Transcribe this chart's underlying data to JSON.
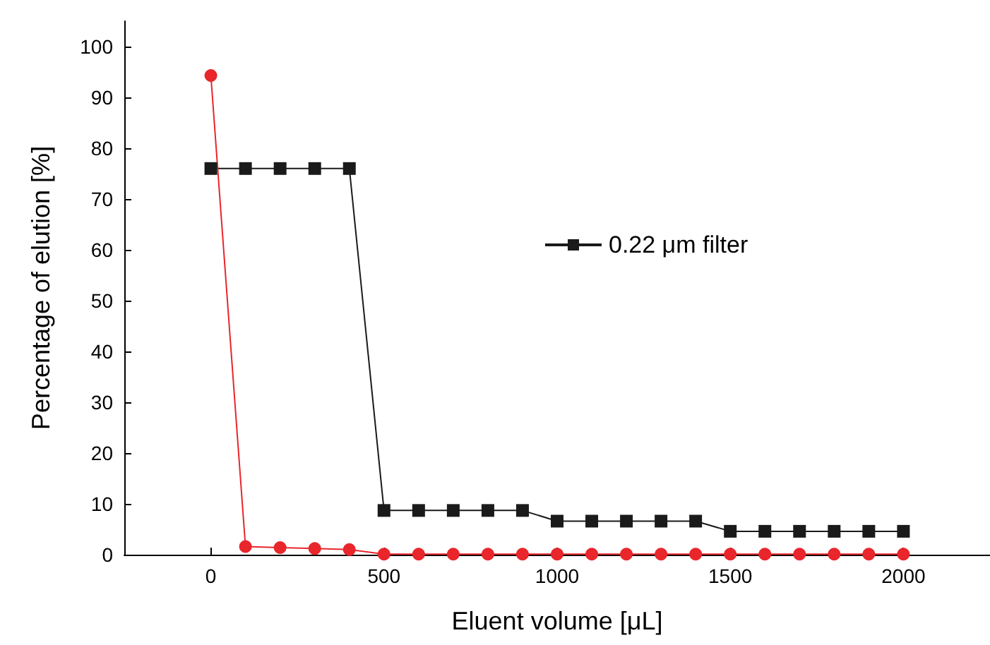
{
  "chart_data": {
    "type": "line",
    "xlabel": "Eluent volume [μL]",
    "ylabel": "Percentage of elution [%]",
    "x": [
      0,
      100,
      200,
      300,
      400,
      500,
      600,
      700,
      800,
      900,
      1000,
      1100,
      1200,
      1300,
      1400,
      1500,
      1600,
      1700,
      1800,
      1900,
      2000
    ],
    "series": [
      {
        "name": "0.22 μm filter",
        "color": "#1a1a1a",
        "marker": "square",
        "values": [
          76,
          76,
          76,
          76,
          76,
          8.7,
          8.7,
          8.7,
          8.7,
          8.7,
          6.6,
          6.6,
          6.6,
          6.6,
          6.6,
          4.6,
          4.6,
          4.6,
          4.6,
          4.6,
          4.6
        ]
      },
      {
        "color": "#e8262b",
        "marker": "circle",
        "values": [
          94.3,
          1.6,
          1.4,
          1.2,
          1.0,
          0.1,
          0.1,
          0.1,
          0.1,
          0.1,
          0.1,
          0.1,
          0.1,
          0.1,
          0.1,
          0.1,
          0.1,
          0.1,
          0.1,
          0.1,
          0.1
        ]
      }
    ],
    "xlim": [
      -250,
      2250
    ],
    "xticks": [
      0,
      500,
      1000,
      1500,
      2000
    ],
    "ylim": [
      0,
      105
    ],
    "yticks": [
      0,
      10,
      20,
      30,
      40,
      50,
      60,
      70,
      80,
      90,
      100
    ],
    "grid": false,
    "legend": "right",
    "line_style": "solid"
  }
}
